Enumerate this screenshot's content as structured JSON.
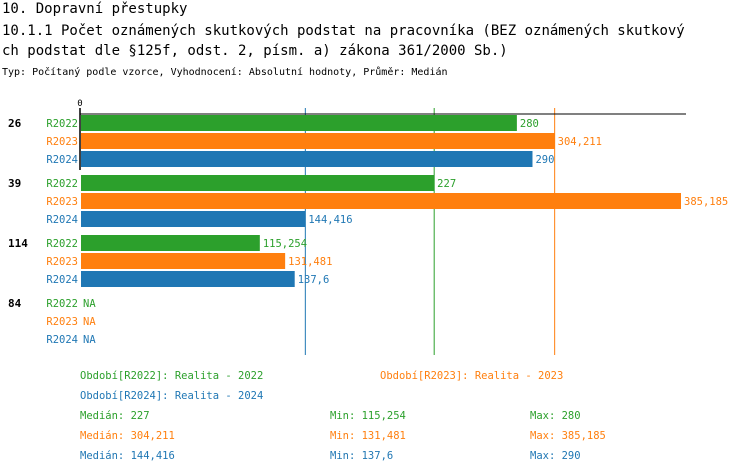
{
  "header": {
    "section": "10. Dopravní přestupky",
    "title_line1": "10.1.1 Počet oznámených skutkových podstat na pracovníka (BEZ oznámených skutkový",
    "title_line2": "ch podstat dle §125f, odst. 2, písm. a) zákona 361/2000 Sb.)",
    "subtitle": "Typ: Počítaný podle vzorce, Vyhodnocení: Absolutní hodnoty, Průměr: Medián"
  },
  "chart_data": {
    "type": "bar",
    "orientation": "horizontal",
    "xlim": [
      0,
      385.185
    ],
    "x_tick_labels": [
      "0"
    ],
    "categories": [
      "26",
      "39",
      "114",
      "84"
    ],
    "series": [
      {
        "name": "R2022",
        "color": "#2ca02c",
        "values": [
          280,
          227,
          115.254,
          null
        ],
        "labels": [
          "280",
          "227",
          "115,254",
          "NA"
        ]
      },
      {
        "name": "R2023",
        "color": "#ff7f0e",
        "values": [
          304.211,
          385.185,
          131.481,
          null
        ],
        "labels": [
          "304,211",
          "385,185",
          "131,481",
          "NA"
        ]
      },
      {
        "name": "R2024",
        "color": "#1f77b4",
        "values": [
          290,
          144.416,
          137.6,
          null
        ],
        "labels": [
          "290",
          "144,416",
          "137,6",
          "NA"
        ]
      }
    ],
    "median_lines": [
      227,
      304.211,
      144.416
    ]
  },
  "legend": [
    {
      "text": "Období[R2022]: Realita - 2022",
      "color": "#2ca02c"
    },
    {
      "text": "Období[R2023]: Realita - 2023",
      "color": "#ff7f0e"
    },
    {
      "text": "Období[R2024]: Realita - 2024",
      "color": "#1f77b4"
    }
  ],
  "stats": [
    {
      "color": "#2ca02c",
      "median": "Medián: 227",
      "min": "Min: 115,254",
      "max": "Max: 280"
    },
    {
      "color": "#ff7f0e",
      "median": "Medián: 304,211",
      "min": "Min: 131,481",
      "max": "Max: 385,185"
    },
    {
      "color": "#1f77b4",
      "median": "Medián: 144,416",
      "min": "Min: 137,6",
      "max": "Max: 290"
    }
  ]
}
